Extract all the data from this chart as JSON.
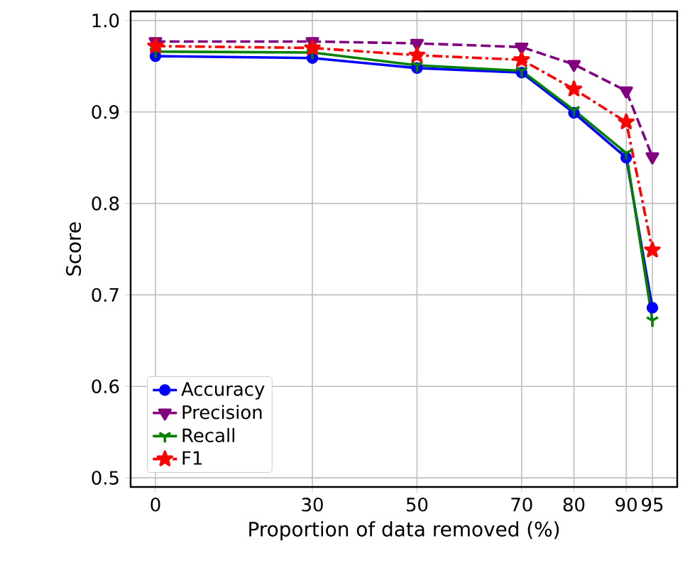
{
  "chart_data": {
    "type": "line",
    "xlabel": "Proportion of data removed (%)",
    "ylabel": "Score",
    "x": [
      0,
      30,
      50,
      70,
      80,
      90,
      95
    ],
    "xlim": [
      -4.75,
      99.75
    ],
    "xticks": [
      0,
      30,
      50,
      70,
      80,
      90,
      95
    ],
    "ylim": [
      0.49,
      1.01
    ],
    "yticks": [
      {
        "value": 0.5,
        "label": "0.5"
      },
      {
        "value": 0.6,
        "label": "0.6"
      },
      {
        "value": 0.7,
        "label": "0.7"
      },
      {
        "value": 0.8,
        "label": "0.8"
      },
      {
        "value": 0.9,
        "label": "0.9"
      },
      {
        "value": 1.0,
        "label": "1.0"
      }
    ],
    "grid": true,
    "legend": "bottom left",
    "series": [
      {
        "name": "Accuracy",
        "color": "#0000ff",
        "marker": "circle",
        "line_style": "solid",
        "values": [
          0.961,
          0.959,
          0.948,
          0.943,
          0.899,
          0.85,
          0.686
        ]
      },
      {
        "name": "Precision",
        "color": "#800080",
        "marker": "triangle",
        "line_style": "dashed",
        "values": [
          0.977,
          0.977,
          0.975,
          0.971,
          0.952,
          0.923,
          0.851
        ]
      },
      {
        "name": "Recall",
        "color": "#008000",
        "marker": "cross",
        "line_style": "solid",
        "values": [
          0.966,
          0.965,
          0.951,
          0.945,
          0.902,
          0.855,
          0.672
        ]
      },
      {
        "name": "F1",
        "color": "#ff0000",
        "marker": "star",
        "line_style": "dashdot",
        "values": [
          0.972,
          0.97,
          0.962,
          0.957,
          0.925,
          0.889,
          0.749
        ]
      }
    ]
  }
}
